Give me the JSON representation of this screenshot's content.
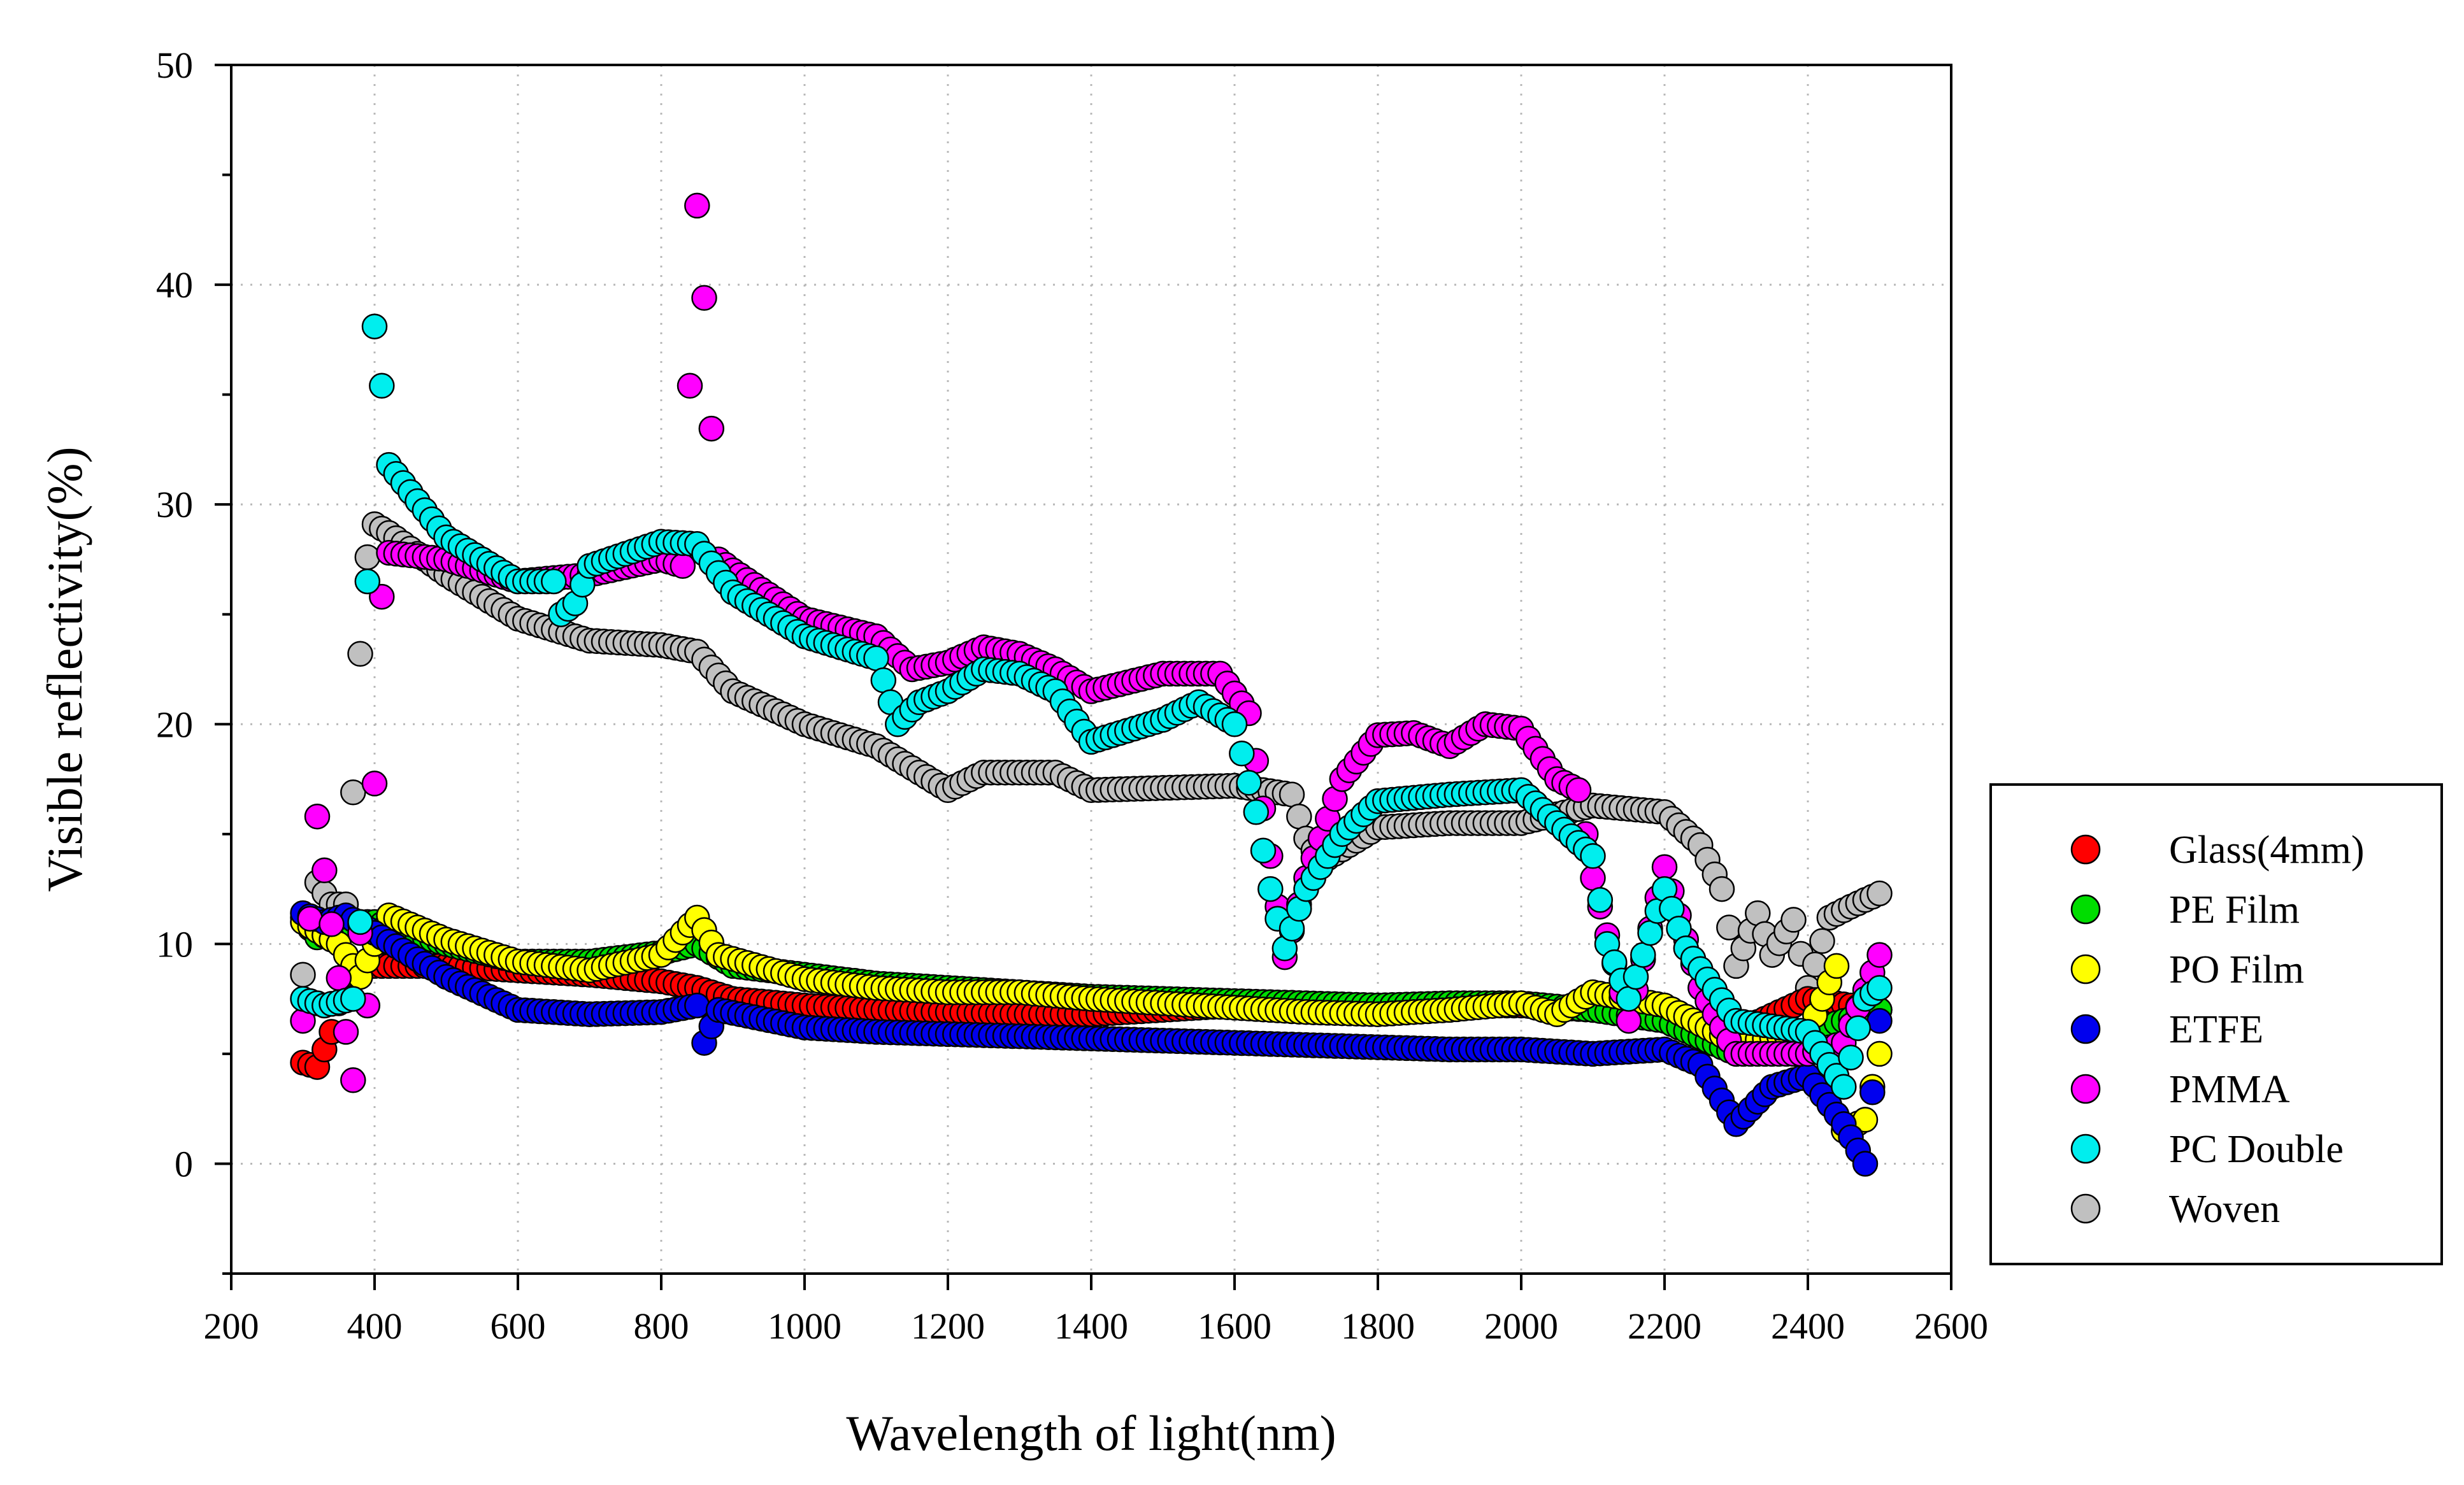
{
  "chart_data": {
    "type": "scatter",
    "title": "",
    "xlabel": "Wavelength of light(nm)",
    "ylabel": "Visible reflectivity(%)",
    "xlim": [
      200,
      2600
    ],
    "ylim": [
      -5,
      50
    ],
    "xticks": [
      200,
      400,
      600,
      800,
      1000,
      1200,
      1400,
      1600,
      1800,
      2000,
      2200,
      2400,
      2600
    ],
    "yticks": [
      0,
      10,
      20,
      30,
      40,
      50
    ],
    "grid": "dotted",
    "legend_position": "right",
    "series": [
      {
        "name": "Glass(4mm)",
        "color": "#ff0000",
        "anchors": [
          [
            300,
            4.6
          ],
          [
            320,
            4.4
          ],
          [
            340,
            6
          ],
          [
            360,
            8.6
          ],
          [
            380,
            9
          ],
          [
            400,
            9
          ],
          [
            450,
            9
          ],
          [
            500,
            9
          ],
          [
            600,
            8.8
          ],
          [
            700,
            8.6
          ],
          [
            800,
            8.3
          ],
          [
            850,
            8
          ],
          [
            900,
            7.5
          ],
          [
            1000,
            7.2
          ],
          [
            1100,
            7
          ],
          [
            1200,
            6.9
          ],
          [
            1300,
            6.8
          ],
          [
            1400,
            6.8
          ],
          [
            1500,
            7
          ],
          [
            1600,
            7.2
          ],
          [
            1700,
            7.2
          ],
          [
            1800,
            7.2
          ],
          [
            1900,
            7.2
          ],
          [
            2000,
            7.2
          ],
          [
            2100,
            7
          ],
          [
            2200,
            6.8
          ],
          [
            2300,
            6
          ],
          [
            2400,
            7.5
          ],
          [
            2500,
            7
          ]
        ]
      },
      {
        "name": "PE Film",
        "color": "#00dd00",
        "anchors": [
          [
            300,
            11.2
          ],
          [
            320,
            10.3
          ],
          [
            350,
            10.5
          ],
          [
            380,
            11
          ],
          [
            400,
            11
          ],
          [
            500,
            10
          ],
          [
            600,
            9.2
          ],
          [
            700,
            9.2
          ],
          [
            800,
            9.6
          ],
          [
            850,
            10
          ],
          [
            900,
            9
          ],
          [
            1000,
            8.6
          ],
          [
            1100,
            8.2
          ],
          [
            1200,
            8
          ],
          [
            1300,
            7.8
          ],
          [
            1400,
            7.6
          ],
          [
            1500,
            7.5
          ],
          [
            1600,
            7.4
          ],
          [
            1700,
            7.3
          ],
          [
            1800,
            7.2
          ],
          [
            1900,
            7.3
          ],
          [
            2000,
            7.3
          ],
          [
            2100,
            7
          ],
          [
            2200,
            6.5
          ],
          [
            2300,
            5
          ],
          [
            2400,
            6
          ],
          [
            2500,
            7
          ]
        ]
      },
      {
        "name": "PO Film",
        "color": "#ffff00",
        "anchors": [
          [
            300,
            11
          ],
          [
            350,
            10
          ],
          [
            380,
            8.5
          ],
          [
            400,
            10
          ],
          [
            420,
            11.3
          ],
          [
            500,
            10.2
          ],
          [
            600,
            9.2
          ],
          [
            700,
            8.8
          ],
          [
            800,
            9.5
          ],
          [
            850,
            11.2
          ],
          [
            880,
            9.5
          ],
          [
            1000,
            8.4
          ],
          [
            1100,
            8
          ],
          [
            1200,
            7.8
          ],
          [
            1300,
            7.8
          ],
          [
            1400,
            7.5
          ],
          [
            1500,
            7.3
          ],
          [
            1600,
            7.1
          ],
          [
            1700,
            6.9
          ],
          [
            1800,
            6.8
          ],
          [
            1900,
            7
          ],
          [
            2000,
            7.3
          ],
          [
            2050,
            6.8
          ],
          [
            2100,
            7.8
          ],
          [
            2200,
            7.2
          ],
          [
            2300,
            5.5
          ],
          [
            2400,
            6
          ],
          [
            2440,
            9
          ],
          [
            2450,
            1.5
          ],
          [
            2480,
            2
          ],
          [
            2500,
            5
          ]
        ]
      },
      {
        "name": "ETFE",
        "color": "#0000ee",
        "anchors": [
          [
            300,
            11.4
          ],
          [
            330,
            11
          ],
          [
            360,
            11.3
          ],
          [
            400,
            10.5
          ],
          [
            500,
            8.5
          ],
          [
            600,
            7
          ],
          [
            700,
            6.8
          ],
          [
            800,
            6.9
          ],
          [
            850,
            7.2
          ],
          [
            860,
            5.5
          ],
          [
            880,
            7
          ],
          [
            1000,
            6.2
          ],
          [
            1100,
            6
          ],
          [
            1200,
            5.9
          ],
          [
            1300,
            5.8
          ],
          [
            1400,
            5.7
          ],
          [
            1500,
            5.6
          ],
          [
            1600,
            5.5
          ],
          [
            1700,
            5.4
          ],
          [
            1800,
            5.3
          ],
          [
            1900,
            5.2
          ],
          [
            2000,
            5.2
          ],
          [
            2100,
            5
          ],
          [
            2200,
            5.2
          ],
          [
            2250,
            4.5
          ],
          [
            2300,
            1.8
          ],
          [
            2350,
            3.5
          ],
          [
            2400,
            4
          ],
          [
            2450,
            1.8
          ],
          [
            2480,
            0
          ],
          [
            2500,
            6.5
          ]
        ]
      },
      {
        "name": "PMMA",
        "color": "#ff00ff",
        "anchors": [
          [
            300,
            6.5
          ],
          [
            320,
            15.8
          ],
          [
            360,
            6
          ],
          [
            370,
            3.8
          ],
          [
            380,
            10.5
          ],
          [
            390,
            7.2
          ],
          [
            400,
            17.3
          ],
          [
            410,
            25.8
          ],
          [
            420,
            27.8
          ],
          [
            500,
            27.5
          ],
          [
            600,
            26.5
          ],
          [
            700,
            26.8
          ],
          [
            800,
            27.5
          ],
          [
            830,
            27.2
          ],
          [
            850,
            43.6
          ],
          [
            860,
            39.4
          ],
          [
            880,
            27.5
          ],
          [
            900,
            27
          ],
          [
            1000,
            24.8
          ],
          [
            1100,
            24
          ],
          [
            1150,
            22.5
          ],
          [
            1200,
            22.8
          ],
          [
            1250,
            23.5
          ],
          [
            1300,
            23.2
          ],
          [
            1350,
            22.5
          ],
          [
            1400,
            21.5
          ],
          [
            1500,
            22.3
          ],
          [
            1580,
            22.3
          ],
          [
            1620,
            20.5
          ],
          [
            1650,
            14
          ],
          [
            1670,
            9.4
          ],
          [
            1700,
            13
          ],
          [
            1750,
            17.5
          ],
          [
            1800,
            19.5
          ],
          [
            1850,
            19.6
          ],
          [
            1900,
            19
          ],
          [
            1950,
            20
          ],
          [
            2000,
            19.8
          ],
          [
            2050,
            17.5
          ],
          [
            2080,
            17
          ],
          [
            2100,
            13
          ],
          [
            2150,
            6.5
          ],
          [
            2200,
            13.5
          ],
          [
            2250,
            8
          ],
          [
            2300,
            5
          ],
          [
            2350,
            5
          ],
          [
            2400,
            5
          ],
          [
            2450,
            5.5
          ],
          [
            2500,
            9.5
          ]
        ]
      },
      {
        "name": "PC Double",
        "color": "#00eeee",
        "anchors": [
          [
            300,
            7.5
          ],
          [
            330,
            7.2
          ],
          [
            370,
            7.5
          ],
          [
            380,
            11
          ],
          [
            390,
            26.5
          ],
          [
            400,
            38.1
          ],
          [
            410,
            35.4
          ],
          [
            420,
            31.8
          ],
          [
            500,
            28.5
          ],
          [
            600,
            26.5
          ],
          [
            650,
            26.5
          ],
          [
            660,
            25
          ],
          [
            680,
            25.5
          ],
          [
            700,
            27.2
          ],
          [
            800,
            28.3
          ],
          [
            850,
            28.2
          ],
          [
            900,
            26
          ],
          [
            1000,
            24
          ],
          [
            1100,
            23
          ],
          [
            1130,
            20
          ],
          [
            1160,
            21
          ],
          [
            1200,
            21.5
          ],
          [
            1250,
            22.5
          ],
          [
            1300,
            22.3
          ],
          [
            1350,
            21.5
          ],
          [
            1400,
            19.2
          ],
          [
            1500,
            20.2
          ],
          [
            1550,
            21
          ],
          [
            1600,
            20
          ],
          [
            1630,
            16
          ],
          [
            1650,
            12.5
          ],
          [
            1670,
            9.8
          ],
          [
            1700,
            12.5
          ],
          [
            1750,
            15
          ],
          [
            1800,
            16.5
          ],
          [
            1900,
            16.8
          ],
          [
            2000,
            17
          ],
          [
            2050,
            15.5
          ],
          [
            2100,
            14
          ],
          [
            2120,
            10
          ],
          [
            2150,
            7.5
          ],
          [
            2200,
            12.5
          ],
          [
            2230,
            9.8
          ],
          [
            2300,
            6.5
          ],
          [
            2400,
            6
          ],
          [
            2450,
            3.5
          ],
          [
            2480,
            7.5
          ],
          [
            2500,
            8
          ]
        ]
      },
      {
        "name": "Woven",
        "color": "#c0c0c0",
        "anchors": [
          [
            300,
            8.6
          ],
          [
            320,
            12.8
          ],
          [
            340,
            11.8
          ],
          [
            360,
            11.8
          ],
          [
            370,
            16.9
          ],
          [
            380,
            23.2
          ],
          [
            390,
            27.6
          ],
          [
            400,
            29.1
          ],
          [
            420,
            28.7
          ],
          [
            500,
            26.8
          ],
          [
            600,
            24.8
          ],
          [
            700,
            23.8
          ],
          [
            800,
            23.6
          ],
          [
            850,
            23.3
          ],
          [
            900,
            21.5
          ],
          [
            1000,
            20
          ],
          [
            1100,
            19
          ],
          [
            1200,
            17
          ],
          [
            1250,
            17.8
          ],
          [
            1350,
            17.8
          ],
          [
            1400,
            17
          ],
          [
            1500,
            17.1
          ],
          [
            1600,
            17.2
          ],
          [
            1680,
            16.8
          ],
          [
            1700,
            14.8
          ],
          [
            1720,
            13.7
          ],
          [
            1800,
            15.3
          ],
          [
            1900,
            15.5
          ],
          [
            2000,
            15.5
          ],
          [
            2100,
            16.3
          ],
          [
            2200,
            16
          ],
          [
            2250,
            14.5
          ],
          [
            2280,
            12.5
          ],
          [
            2300,
            9
          ],
          [
            2330,
            11.4
          ],
          [
            2350,
            9.5
          ],
          [
            2380,
            11.1
          ],
          [
            2400,
            8
          ],
          [
            2430,
            11.2
          ],
          [
            2460,
            11.7
          ],
          [
            2500,
            12.3
          ]
        ]
      }
    ]
  }
}
